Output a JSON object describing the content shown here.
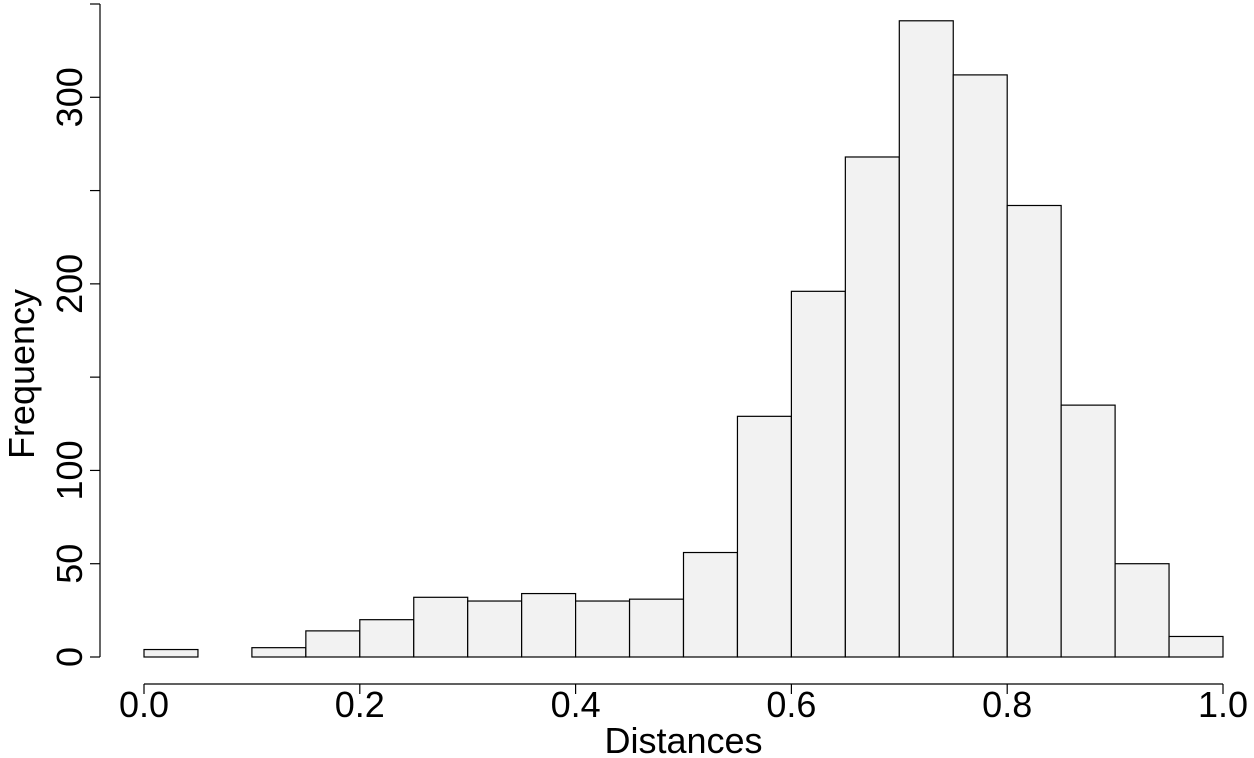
{
  "chart_data": {
    "type": "bar",
    "subtype": "histogram",
    "title": "",
    "xlabel": "Distances",
    "ylabel": "Frequency",
    "bin_width": 0.05,
    "bins": [
      [
        0.0,
        0.05
      ],
      [
        0.05,
        0.1
      ],
      [
        0.1,
        0.15
      ],
      [
        0.15,
        0.2
      ],
      [
        0.2,
        0.25
      ],
      [
        0.25,
        0.3
      ],
      [
        0.3,
        0.35
      ],
      [
        0.35,
        0.4
      ],
      [
        0.4,
        0.45
      ],
      [
        0.45,
        0.5
      ],
      [
        0.5,
        0.55
      ],
      [
        0.55,
        0.6
      ],
      [
        0.6,
        0.65
      ],
      [
        0.65,
        0.7
      ],
      [
        0.7,
        0.75
      ],
      [
        0.75,
        0.8
      ],
      [
        0.8,
        0.85
      ],
      [
        0.85,
        0.9
      ],
      [
        0.9,
        0.95
      ],
      [
        0.95,
        1.0
      ]
    ],
    "values": [
      4,
      0,
      5,
      14,
      20,
      32,
      30,
      34,
      30,
      31,
      56,
      129,
      196,
      268,
      341,
      312,
      242,
      135,
      50,
      11
    ],
    "xlim": [
      0,
      1
    ],
    "ylim": [
      0,
      350
    ],
    "x_ticks": [
      0.0,
      0.2,
      0.4,
      0.6,
      0.8,
      1.0
    ],
    "x_tick_labels": [
      "0.0",
      "0.2",
      "0.4",
      "0.6",
      "0.8",
      "1.0"
    ],
    "y_ticks": [
      0,
      50,
      100,
      150,
      200,
      250,
      300,
      350
    ],
    "y_tick_labels": [
      "0",
      "50",
      "100",
      "",
      "200",
      "",
      "300",
      ""
    ],
    "grid": false,
    "bar_fill": "#f2f2f2",
    "bar_stroke": "#000000"
  }
}
